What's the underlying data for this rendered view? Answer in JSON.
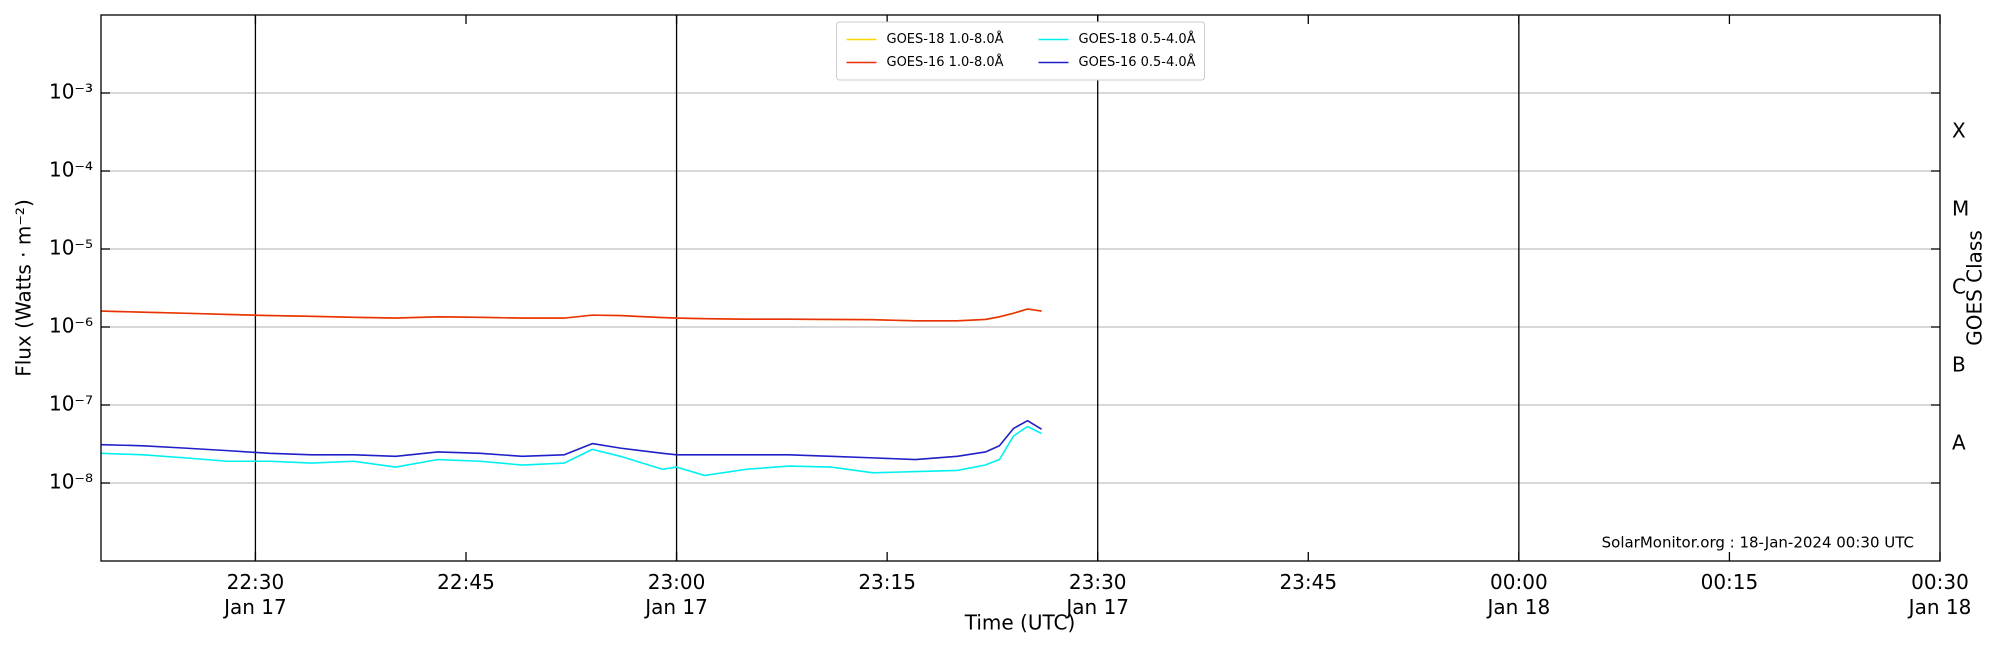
{
  "chart_data": {
    "type": "line",
    "xlabel": "Time (UTC)",
    "ylabel": "Flux (Watts · m⁻²)",
    "y2label": "GOES Class",
    "annotation": "SolarMonitor.org : 18-Jan-2024 00:30 UTC",
    "yscale": "log",
    "grid": "y",
    "legend_loc": "upper center",
    "legend_ncol": 2,
    "x": [
      "Jan 17 22:19",
      "Jan 17 22:22",
      "Jan 17 22:25",
      "Jan 17 22:28",
      "Jan 17 22:31",
      "Jan 17 22:34",
      "Jan 17 22:37",
      "Jan 17 22:40",
      "Jan 17 22:43",
      "Jan 17 22:46",
      "Jan 17 22:49",
      "Jan 17 22:52",
      "Jan 17 22:54",
      "Jan 17 22:56",
      "Jan 17 22:59",
      "Jan 17 23:00",
      "Jan 17 23:02",
      "Jan 17 23:05",
      "Jan 17 23:08",
      "Jan 17 23:11",
      "Jan 17 23:14",
      "Jan 17 23:17",
      "Jan 17 23:20",
      "Jan 17 23:22",
      "Jan 17 23:23",
      "Jan 17 23:24",
      "Jan 17 23:25",
      "Jan 17 23:26"
    ],
    "series": [
      {
        "name": "GOES-18 1.0-8.0Å",
        "color": "#ffd700",
        "values": [
          1.6e-06,
          1.55e-06,
          1.5e-06,
          1.45e-06,
          1.4e-06,
          1.37e-06,
          1.33e-06,
          1.3e-06,
          1.35e-06,
          1.33e-06,
          1.3e-06,
          1.3e-06,
          1.42e-06,
          1.4e-06,
          1.32e-06,
          1.3e-06,
          1.28e-06,
          1.26e-06,
          1.26e-06,
          1.25e-06,
          1.24e-06,
          1.2e-06,
          1.2e-06,
          1.25e-06,
          1.35e-06,
          1.5e-06,
          1.7e-06,
          1.6e-06
        ]
      },
      {
        "name": "GOES-16 1.0-8.0Å",
        "color": "#e8300f",
        "values": [
          1.6e-06,
          1.55e-06,
          1.5e-06,
          1.45e-06,
          1.4e-06,
          1.37e-06,
          1.33e-06,
          1.3e-06,
          1.35e-06,
          1.33e-06,
          1.3e-06,
          1.3e-06,
          1.42e-06,
          1.4e-06,
          1.32e-06,
          1.3e-06,
          1.28e-06,
          1.26e-06,
          1.26e-06,
          1.25e-06,
          1.24e-06,
          1.2e-06,
          1.2e-06,
          1.25e-06,
          1.35e-06,
          1.5e-06,
          1.7e-06,
          1.6e-06
        ]
      },
      {
        "name": "GOES-18 0.5-4.0Å",
        "color": "#00f0f0",
        "values": [
          2.4e-08,
          2.3e-08,
          2.1e-08,
          1.9e-08,
          1.9e-08,
          1.8e-08,
          1.9e-08,
          1.6e-08,
          2e-08,
          1.9e-08,
          1.7e-08,
          1.8e-08,
          2.7e-08,
          2.2e-08,
          1.5e-08,
          1.6e-08,
          1.25e-08,
          1.5e-08,
          1.65e-08,
          1.6e-08,
          1.35e-08,
          1.4e-08,
          1.45e-08,
          1.7e-08,
          2e-08,
          4e-08,
          5.3e-08,
          4.3e-08
        ]
      },
      {
        "name": "GOES-16 0.5-4.0Å",
        "color": "#2020c8",
        "values": [
          3.1e-08,
          3e-08,
          2.8e-08,
          2.6e-08,
          2.4e-08,
          2.3e-08,
          2.3e-08,
          2.2e-08,
          2.5e-08,
          2.4e-08,
          2.2e-08,
          2.3e-08,
          3.2e-08,
          2.8e-08,
          2.4e-08,
          2.3e-08,
          2.3e-08,
          2.3e-08,
          2.3e-08,
          2.2e-08,
          2.1e-08,
          2e-08,
          2.2e-08,
          2.5e-08,
          3e-08,
          5e-08,
          6.3e-08,
          4.9e-08
        ]
      }
    ],
    "xlim": [
      "Jan 17 22:19",
      "Jan 18 00:30"
    ],
    "xticks": [
      {
        "value": "Jan 17 22:30",
        "label": "22:30\nJan 17"
      },
      {
        "value": "Jan 17 22:45",
        "label": "22:45"
      },
      {
        "value": "Jan 17 23:00",
        "label": "23:00\nJan 17"
      },
      {
        "value": "Jan 17 23:15",
        "label": "23:15"
      },
      {
        "value": "Jan 17 23:30",
        "label": "23:30\nJan 17"
      },
      {
        "value": "Jan 17 23:45",
        "label": "23:45"
      },
      {
        "value": "Jan 18 00:00",
        "label": "00:00\nJan 18"
      },
      {
        "value": "Jan 18 00:15",
        "label": "00:15"
      },
      {
        "value": "Jan 18 00:30",
        "label": "00:30\nJan 18"
      }
    ],
    "vlines": [
      "Jan 17 22:30",
      "Jan 17 23:00",
      "Jan 17 23:30",
      "Jan 18 00:00"
    ],
    "ylim": [
      1e-09,
      0.01
    ],
    "yticks": [
      {
        "value": 1e-08,
        "label": "10⁻⁸"
      },
      {
        "value": 1e-07,
        "label": "10⁻⁷"
      },
      {
        "value": 1e-06,
        "label": "10⁻⁶"
      },
      {
        "value": 1e-05,
        "label": "10⁻⁵"
      },
      {
        "value": 0.0001,
        "label": "10⁻⁴"
      },
      {
        "value": 0.001,
        "label": "10⁻³"
      }
    ],
    "y2lim": [
      1e-09,
      0.01
    ],
    "y2ticks": [
      {
        "value": 3.16e-08,
        "label": "A"
      },
      {
        "value": 3.16e-07,
        "label": "B"
      },
      {
        "value": 3.16e-06,
        "label": "C"
      },
      {
        "value": 3.16e-05,
        "label": "M"
      },
      {
        "value": 0.000316,
        "label": "X"
      }
    ]
  }
}
